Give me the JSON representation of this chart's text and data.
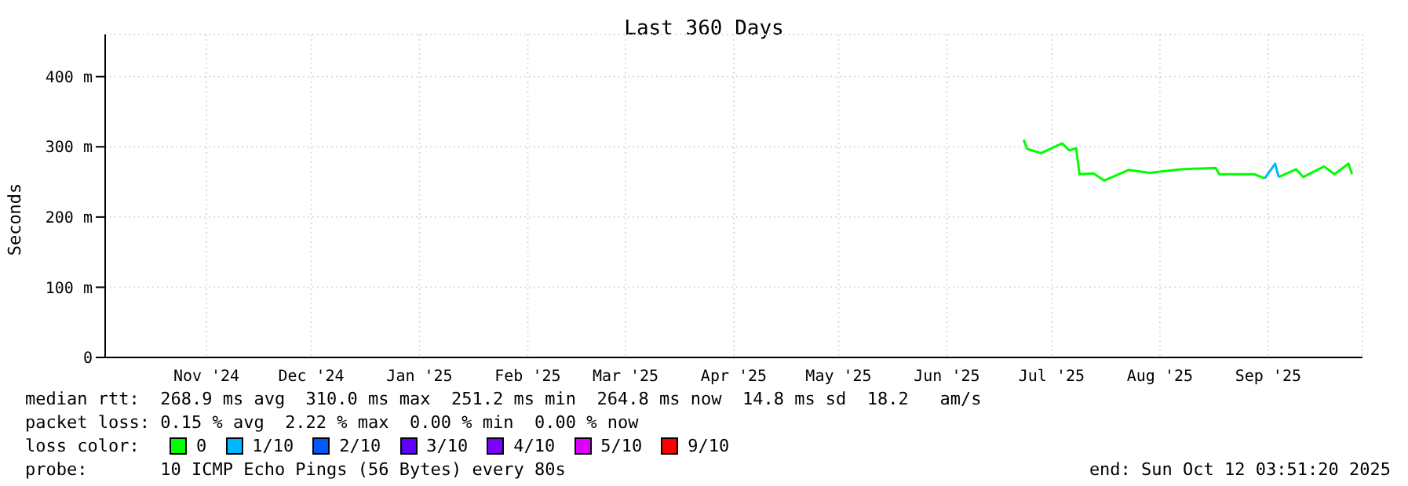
{
  "chart_data": {
    "type": "line",
    "title": "Last 360 Days",
    "ylabel": "Seconds",
    "legend_title": "loss color:",
    "legend": "bottom",
    "grid": true,
    "marker": "none",
    "line_style": "solid",
    "xlim": [
      "2024-10-17",
      "2025-10-12"
    ],
    "xticks": [
      {
        "value": "2024-11-15",
        "label": "Nov '24"
      },
      {
        "value": "2024-12-15",
        "label": "Dec '24"
      },
      {
        "value": "2025-01-15",
        "label": "Jan '25"
      },
      {
        "value": "2025-02-15",
        "label": "Feb '25"
      },
      {
        "value": "2025-03-15",
        "label": "Mar '25"
      },
      {
        "value": "2025-04-15",
        "label": "Apr '25"
      },
      {
        "value": "2025-05-15",
        "label": "May '25"
      },
      {
        "value": "2025-06-15",
        "label": "Jun '25"
      },
      {
        "value": "2025-07-15",
        "label": "Jul '25"
      },
      {
        "value": "2025-08-15",
        "label": "Aug '25"
      },
      {
        "value": "2025-09-15",
        "label": "Sep '25"
      }
    ],
    "ylim": [
      0,
      460
    ],
    "yticks": [
      0,
      {
        "value": 100,
        "label": "100 m"
      },
      {
        "value": 200,
        "label": "200 m"
      },
      {
        "value": 300,
        "label": "300 m"
      },
      {
        "value": 400,
        "label": "400 m"
      }
    ],
    "series": [
      {
        "name": "0",
        "color": "#00ff00",
        "x": [
          "2025-07-07",
          "2025-07-08",
          "2025-07-12",
          "2025-07-18",
          "2025-07-20",
          "2025-07-22",
          "2025-07-23",
          "2025-07-27",
          "2025-07-30",
          "2025-08-06",
          "2025-08-12",
          "2025-08-21",
          "2025-08-31",
          "2025-09-01",
          "2025-09-11",
          "2025-09-14",
          "2025-09-17",
          "2025-09-18",
          "2025-09-23",
          "2025-09-25",
          "2025-10-01",
          "2025-10-04",
          "2025-10-08",
          "2025-10-09"
        ],
        "values": [
          310,
          297,
          291,
          305,
          295,
          298,
          261,
          262,
          252,
          267,
          263,
          268,
          270,
          261,
          261,
          255,
          null,
          257,
          268,
          257,
          272,
          261,
          276,
          261
        ]
      },
      {
        "name": "1/10",
        "color": "#00b8ff",
        "x": [
          "2025-09-14",
          "2025-09-17",
          "2025-09-18"
        ],
        "values": [
          255,
          276,
          257
        ]
      },
      {
        "name": "2/10",
        "color": "#0059ff"
      },
      {
        "name": "3/10",
        "color": "#5e00ff"
      },
      {
        "name": "4/10",
        "color": "#7e00ff"
      },
      {
        "name": "5/10",
        "color": "#dd00ff"
      },
      {
        "name": "9/10",
        "color": "#ff0000"
      }
    ],
    "annotations": [
      "median rtt:  268.9 ms avg  310.0 ms max  251.2 ms min  264.8 ms now  14.8 ms sd  18.2   am/s",
      "packet loss: 0.15 % avg  2.22 % max  0.00 % min  0.00 % now",
      "probe:       10 ICMP Echo Pings (56 Bytes) every 80s",
      "end: Sun Oct 12 03:51:20 2025"
    ]
  }
}
